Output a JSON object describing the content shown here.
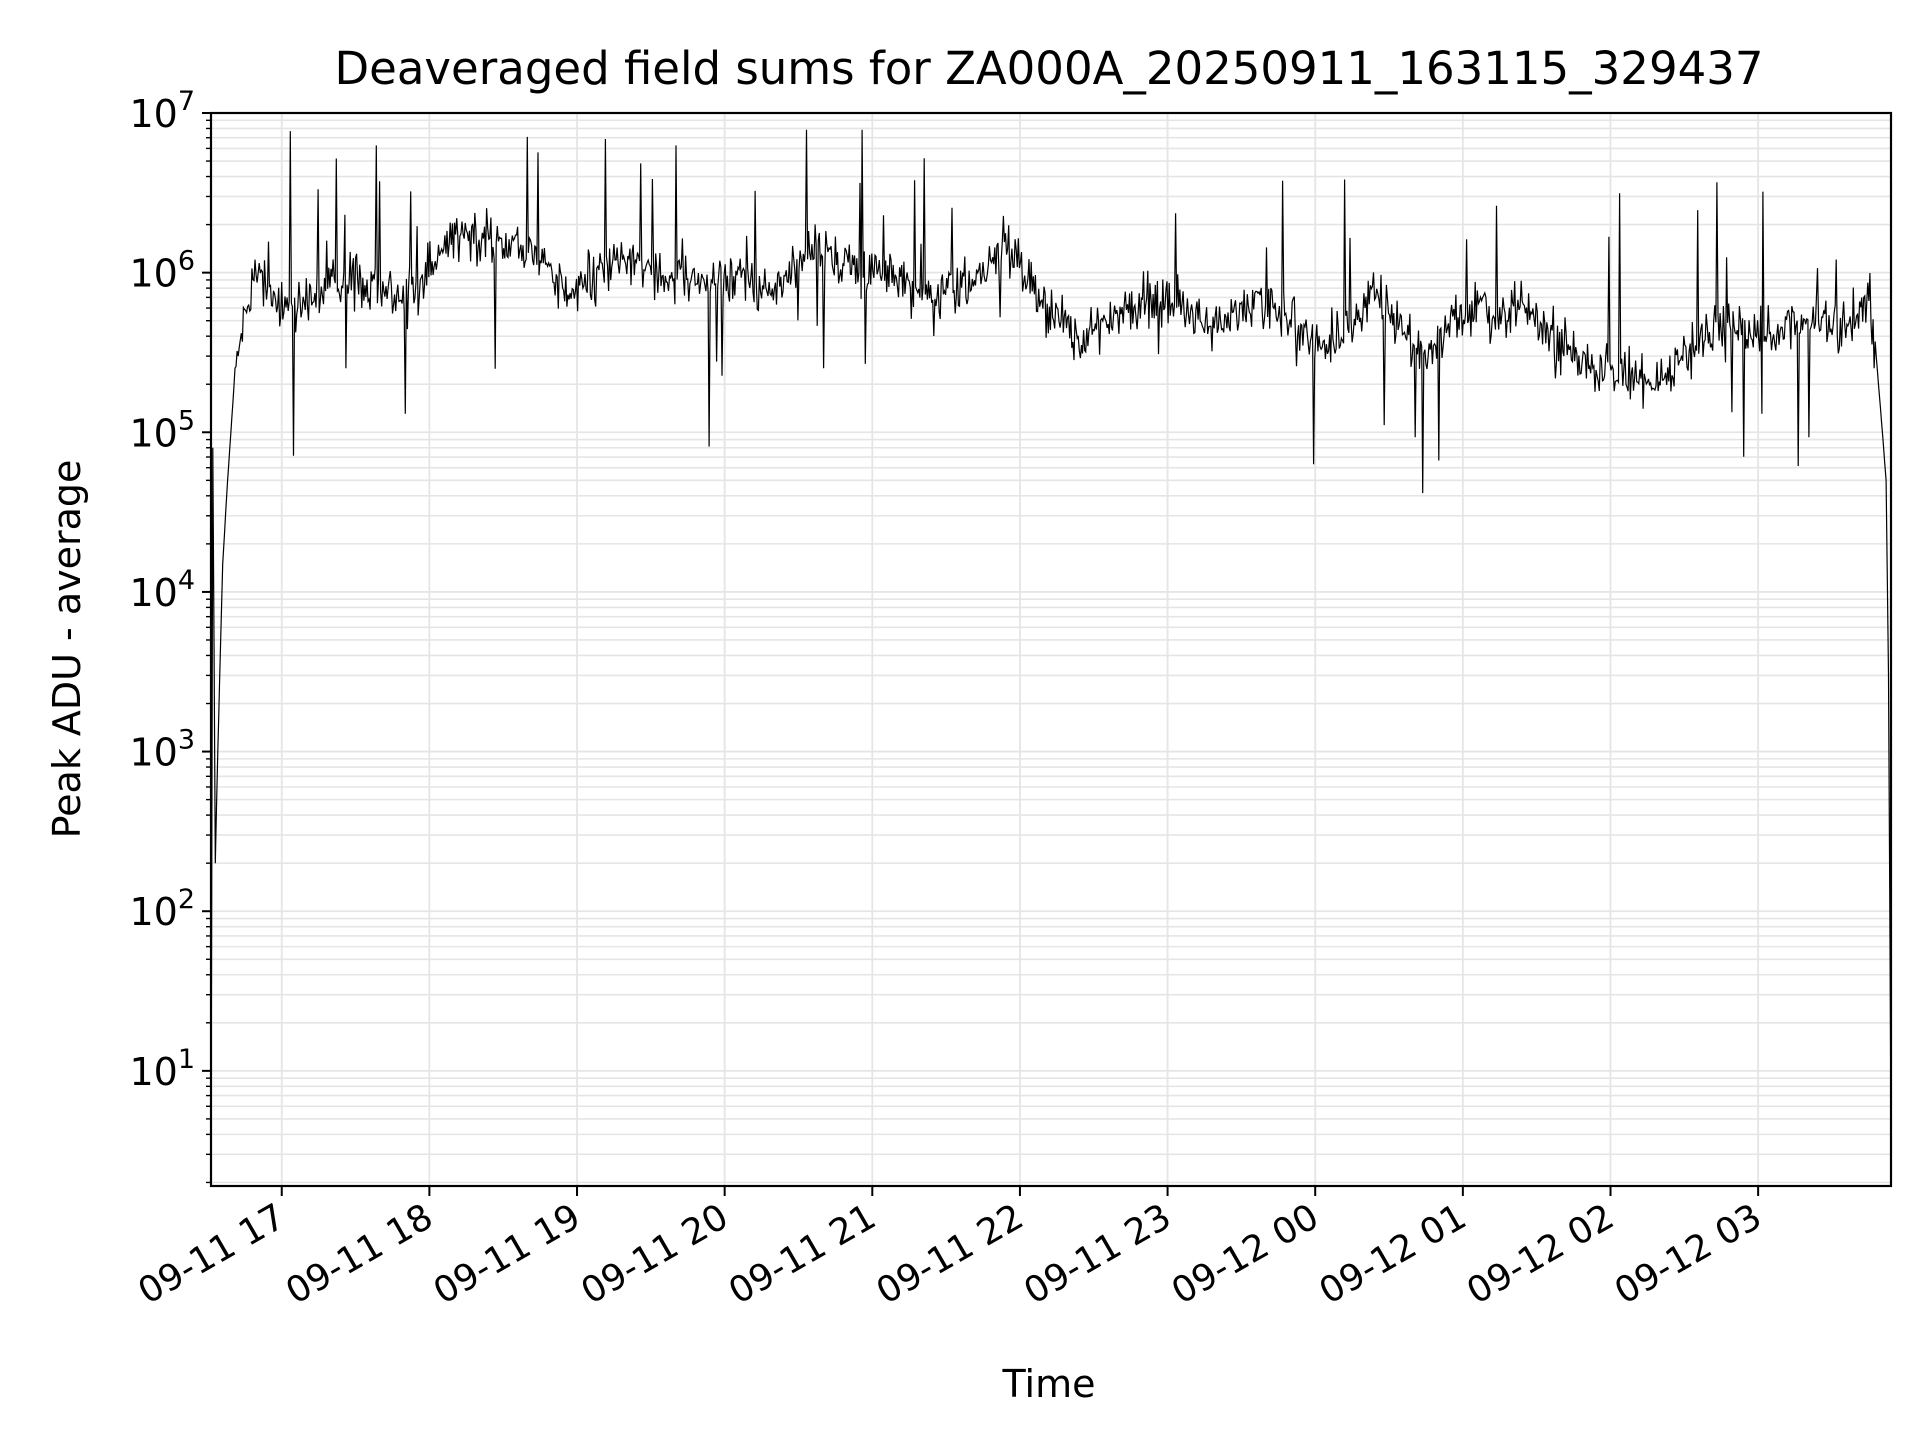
{
  "chart_data": {
    "type": "line",
    "title": "Deaveraged field sums for ZA000A_20250911_163115_329437",
    "xlabel": "Time",
    "ylabel": "Peak ADU - average",
    "yscale": "log",
    "ylim": [
      1.9,
      10000000
    ],
    "xlim": [
      "2025-09-11T16:31:15",
      "2025-09-12T03:54:00"
    ],
    "grid": {
      "major": true,
      "minor_y": true,
      "color": "#e5e5e5"
    },
    "legend": "none",
    "line_color": "#000000",
    "y_ticks": [
      {
        "value": 10,
        "base": "10",
        "exp": "1"
      },
      {
        "value": 100,
        "base": "10",
        "exp": "2"
      },
      {
        "value": 1000,
        "base": "10",
        "exp": "3"
      },
      {
        "value": 10000,
        "base": "10",
        "exp": "4"
      },
      {
        "value": 100000,
        "base": "10",
        "exp": "5"
      },
      {
        "value": 1000000,
        "base": "10",
        "exp": "6"
      },
      {
        "value": 10000000,
        "base": "10",
        "exp": "7"
      }
    ],
    "x_ticks": [
      {
        "value": "2025-09-11T17:00:00",
        "label": "09-11 17"
      },
      {
        "value": "2025-09-11T18:00:00",
        "label": "09-11 18"
      },
      {
        "value": "2025-09-11T19:00:00",
        "label": "09-11 19"
      },
      {
        "value": "2025-09-11T20:00:00",
        "label": "09-11 20"
      },
      {
        "value": "2025-09-11T21:00:00",
        "label": "09-11 21"
      },
      {
        "value": "2025-09-11T22:00:00",
        "label": "09-11 22"
      },
      {
        "value": "2025-09-11T23:00:00",
        "label": "09-11 23"
      },
      {
        "value": "2025-09-12T00:00:00",
        "label": "09-12 00"
      },
      {
        "value": "2025-09-12T01:00:00",
        "label": "09-12 01"
      },
      {
        "value": "2025-09-12T02:00:00",
        "label": "09-12 02"
      },
      {
        "value": "2025-09-12T03:00:00",
        "label": "09-12 03"
      }
    ],
    "series": [
      {
        "x": [
          "2025-09-11T16:31:15",
          "2025-09-11T16:32:00",
          "2025-09-11T16:33:00",
          "2025-09-11T16:34:00",
          "2025-09-11T16:36:00",
          "2025-09-11T16:38:00",
          "2025-09-11T16:41:00",
          "2025-09-11T16:44:00",
          "2025-09-11T16:47:00",
          "2025-09-11T16:50:00",
          "2025-09-11T16:53:00",
          "2025-09-11T16:55:00",
          "2025-09-11T17:00:00",
          "2025-09-11T17:10:00",
          "2025-09-11T17:20:00",
          "2025-09-11T17:30:00",
          "2025-09-11T17:38:00",
          "2025-09-11T17:45:00",
          "2025-09-11T17:55:00",
          "2025-09-11T18:05:00",
          "2025-09-11T18:15:00",
          "2025-09-11T18:25:00",
          "2025-09-11T18:35:00",
          "2025-09-11T18:45:00",
          "2025-09-11T18:55:00",
          "2025-09-11T19:05:00",
          "2025-09-11T19:15:00",
          "2025-09-11T19:25:00",
          "2025-09-11T19:35:00",
          "2025-09-11T19:45:00",
          "2025-09-11T19:55:00",
          "2025-09-11T20:05:00",
          "2025-09-11T20:15:00",
          "2025-09-11T20:25:00",
          "2025-09-11T20:35:00",
          "2025-09-11T20:45:00",
          "2025-09-11T20:55:00",
          "2025-09-11T21:05:00",
          "2025-09-11T21:15:00",
          "2025-09-11T21:25:00",
          "2025-09-11T21:35:00",
          "2025-09-11T21:45:00",
          "2025-09-11T21:55:00",
          "2025-09-11T22:05:00",
          "2025-09-11T22:15:00",
          "2025-09-11T22:25:00",
          "2025-09-11T22:35:00",
          "2025-09-11T22:45:00",
          "2025-09-11T22:55:00",
          "2025-09-11T23:05:00",
          "2025-09-11T23:15:00",
          "2025-09-11T23:25:00",
          "2025-09-11T23:35:00",
          "2025-09-11T23:45:00",
          "2025-09-11T23:55:00",
          "2025-09-12T00:05:00",
          "2025-09-12T00:15:00",
          "2025-09-12T00:25:00",
          "2025-09-12T00:35:00",
          "2025-09-12T00:45:00",
          "2025-09-12T00:55:00",
          "2025-09-12T01:05:00",
          "2025-09-12T01:15:00",
          "2025-09-12T01:25:00",
          "2025-09-12T01:35:00",
          "2025-09-12T01:45:00",
          "2025-09-12T01:55:00",
          "2025-09-12T02:05:00",
          "2025-09-12T02:15:00",
          "2025-09-12T02:25:00",
          "2025-09-12T02:35:00",
          "2025-09-12T02:45:00",
          "2025-09-12T02:55:00",
          "2025-09-12T03:05:00",
          "2025-09-12T03:15:00",
          "2025-09-12T03:25:00",
          "2025-09-12T03:33:00",
          "2025-09-12T03:40:00",
          "2025-09-12T03:45:00",
          "2025-09-12T03:48:00",
          "2025-09-12T03:51:00",
          "2025-09-12T03:52:00",
          "2025-09-12T03:53:00",
          "2025-09-12T03:54:00"
        ],
        "y": [
          2,
          80000,
          200,
          1000,
          15000,
          50000,
          240000,
          500000,
          700000,
          950000,
          900000,
          800000,
          650000,
          700000,
          800000,
          850000,
          900000,
          700000,
          800000,
          1500000,
          1800000,
          1600000,
          1500000,
          1200000,
          700000,
          900000,
          1200000,
          1100000,
          1000000,
          900000,
          800000,
          1100000,
          700000,
          1000000,
          1400000,
          1200000,
          1000000,
          1100000,
          800000,
          700000,
          800000,
          1000000,
          1600000,
          800000,
          500000,
          400000,
          500000,
          600000,
          700000,
          600000,
          500000,
          500000,
          600000,
          600000,
          400000,
          350000,
          500000,
          800000,
          400000,
          300000,
          500000,
          600000,
          500000,
          600000,
          400000,
          300000,
          250000,
          250000,
          200000,
          250000,
          350000,
          500000,
          400000,
          400000,
          500000,
          500000,
          400000,
          600000,
          700000,
          300000,
          80000,
          50000,
          3000,
          4
        ]
      }
    ],
    "noise": {
      "decades_sigma": 0.22,
      "spike_probability": 0.04,
      "spike_decades": 0.7
    }
  }
}
